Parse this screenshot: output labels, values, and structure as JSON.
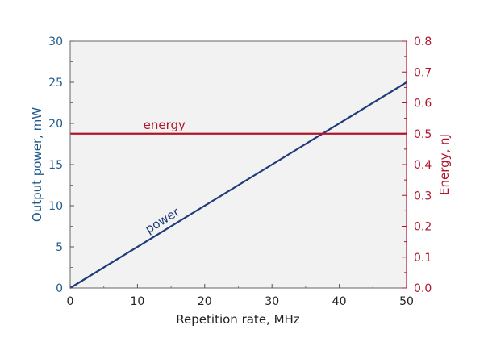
{
  "chart_data": {
    "type": "line",
    "xlabel": "Repetition rate, MHz",
    "ylabel_left": "Output power, mW",
    "ylabel_right": "Energy, nJ",
    "xlim": [
      0,
      50
    ],
    "ylim_left": [
      0,
      30
    ],
    "ylim_right": [
      0,
      0.8
    ],
    "x_ticks": [
      "0",
      "10",
      "20",
      "30",
      "40",
      "50"
    ],
    "y_left_ticks": [
      "0",
      "5",
      "10",
      "15",
      "20",
      "25",
      "30"
    ],
    "y_right_ticks": [
      "0.0",
      "0.1",
      "0.2",
      "0.3",
      "0.4",
      "0.5",
      "0.6",
      "0.7",
      "0.8"
    ],
    "grid": false,
    "colors": {
      "background": "#f2f2f2",
      "power": "#1f3b7a",
      "energy": "#b0152b",
      "left_axis": "#1f5a8c",
      "right_axis": "#b0152b",
      "axis_text": "#222222"
    },
    "series": [
      {
        "name": "power",
        "axis": "left",
        "x": [
          0,
          50
        ],
        "y": [
          0,
          25
        ]
      },
      {
        "name": "energy",
        "axis": "right",
        "x": [
          0,
          50
        ],
        "y": [
          0.5,
          0.5
        ]
      }
    ]
  }
}
